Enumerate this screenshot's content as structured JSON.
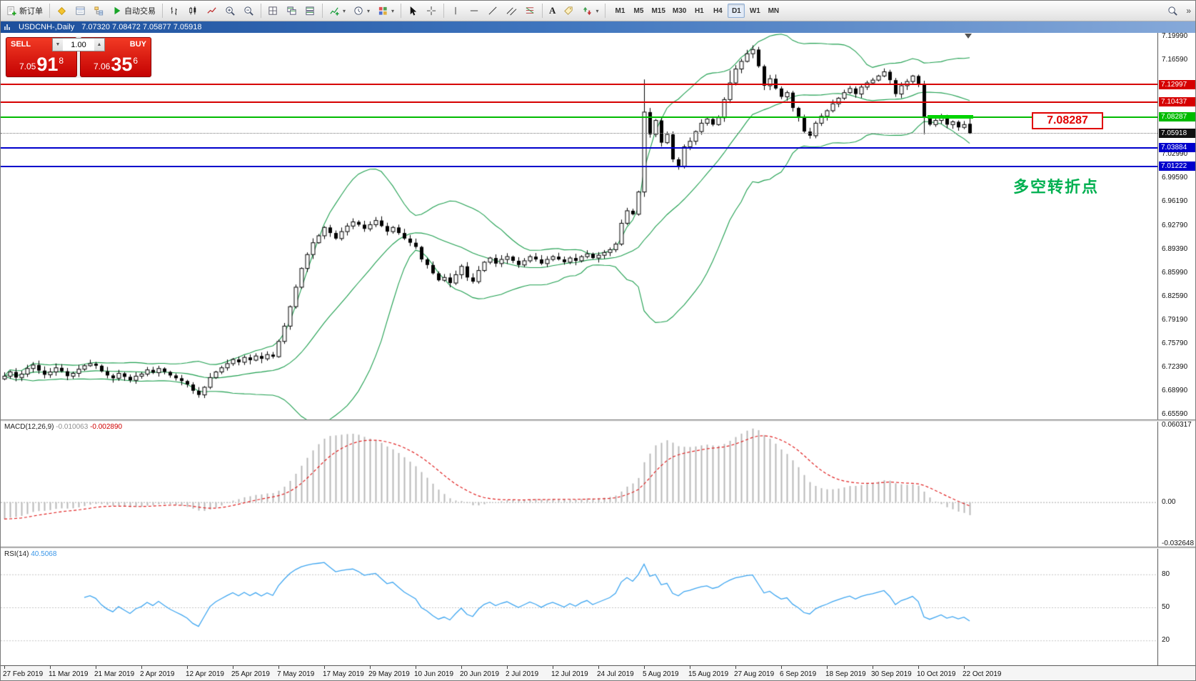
{
  "window": {
    "title_symbol": "USDCNH-,Daily",
    "title_ohlc": "7.07320 7.08472 7.05877 7.05918"
  },
  "toolbar": {
    "new_order_label": "新订单",
    "autotrading_label": "自动交易",
    "text_tool_label": "A",
    "timeframes": [
      "M1",
      "M5",
      "M15",
      "M30",
      "H1",
      "H4",
      "D1",
      "W1",
      "MN"
    ],
    "active_timeframe": "D1"
  },
  "icons": {
    "dropdown_caret": "▾",
    "spinner_up": "▲",
    "spinner_down": "▼",
    "overflow_chevron": "»"
  },
  "trade_panel": {
    "sell_label": "SELL",
    "buy_label": "BUY",
    "volume": "1.00",
    "sell_price": {
      "prefix": "7.05",
      "big": "91",
      "sup": "8"
    },
    "buy_price": {
      "prefix": "7.06",
      "big": "35",
      "sup": "6"
    }
  },
  "annotations": {
    "price_callout": "7.08287",
    "price_callout_color": "#e00000",
    "turning_point_text": "多空转折点",
    "turning_point_color": "#00b050"
  },
  "panels": {
    "macd": {
      "name": "MACD(12,26,9)",
      "value_main": "-0.010063",
      "value_signal": "-0.002890",
      "scale_top": "0.060317",
      "scale_zero": "0.00",
      "scale_bottom": "-0.032648"
    },
    "rsi": {
      "name": "RSI(14)",
      "value": "40.5068",
      "levels": [
        "80",
        "50",
        "20"
      ]
    }
  },
  "price_axis": {
    "regular_labels": [
      "7.19990",
      "7.16590",
      "7.02990",
      "6.99590",
      "6.96190",
      "6.92790",
      "6.89390",
      "6.85990",
      "6.82590",
      "6.79190",
      "6.75790",
      "6.72390",
      "6.68990",
      "6.65590"
    ],
    "badges": [
      {
        "text": "7.12997",
        "bg": "#d60000"
      },
      {
        "text": "7.10437",
        "bg": "#d60000"
      },
      {
        "text": "7.08287",
        "bg": "#00bb00"
      },
      {
        "text": "7.05918",
        "bg": "#111111"
      },
      {
        "text": "7.03884",
        "bg": "#0000cc"
      },
      {
        "text": "7.01222",
        "bg": "#0000cc"
      }
    ]
  },
  "chart_data": {
    "type": "candlestick",
    "symbol": "USDCNH-",
    "timeframe": "Daily",
    "last_bar": {
      "open": 7.0732,
      "high": 7.08472,
      "low": 7.05877,
      "close": 7.05918
    },
    "bid_price": 7.05918,
    "price_range": [
      6.6559,
      7.1999
    ],
    "bars_per_label": 8,
    "x_labels": [
      "27 Feb 2019",
      "11 Mar 2019",
      "21 Mar 2019",
      "2 Apr 2019",
      "12 Apr 2019",
      "25 Apr 2019",
      "7 May 2019",
      "17 May 2019",
      "29 May 2019",
      "10 Jun 2019",
      "20 Jun 2019",
      "2 Jul 2019",
      "12 Jul 2019",
      "24 Jul 2019",
      "5 Aug 2019",
      "15 Aug 2019",
      "27 Aug 2019",
      "6 Sep 2019",
      "18 Sep 2019",
      "30 Sep 2019",
      "10 Oct 2019",
      "22 Oct 2019"
    ],
    "closes": [
      6.71,
      6.716,
      6.708,
      6.713,
      6.721,
      6.726,
      6.718,
      6.712,
      6.716,
      6.722,
      6.717,
      6.71,
      6.714,
      6.72,
      6.725,
      6.728,
      6.725,
      6.717,
      6.711,
      6.707,
      6.714,
      6.709,
      6.704,
      6.71,
      6.713,
      6.719,
      6.715,
      6.721,
      6.716,
      6.711,
      6.707,
      6.703,
      6.698,
      6.689,
      6.683,
      6.694,
      6.708,
      6.716,
      6.722,
      6.728,
      6.734,
      6.73,
      6.737,
      6.733,
      6.739,
      6.735,
      6.741,
      6.738,
      6.76,
      6.782,
      6.81,
      6.838,
      6.865,
      6.885,
      6.902,
      6.912,
      6.924,
      6.916,
      6.908,
      6.918,
      6.926,
      6.932,
      6.928,
      6.922,
      6.928,
      6.934,
      6.926,
      6.918,
      6.924,
      6.916,
      6.908,
      6.902,
      6.896,
      6.878,
      6.87,
      6.858,
      6.848,
      6.852,
      6.844,
      6.856,
      6.868,
      6.852,
      6.846,
      6.862,
      6.874,
      6.88,
      6.872,
      6.878,
      6.882,
      6.876,
      6.87,
      6.876,
      6.882,
      6.878,
      6.872,
      6.878,
      6.882,
      6.878,
      6.874,
      6.88,
      6.876,
      6.882,
      6.886,
      6.88,
      6.884,
      6.888,
      6.892,
      6.9,
      6.93,
      6.948,
      6.943,
      6.975,
      7.09,
      7.058,
      7.078,
      7.046,
      7.058,
      7.022,
      7.012,
      7.04,
      7.048,
      7.062,
      7.074,
      7.08,
      7.072,
      7.082,
      7.108,
      7.132,
      7.152,
      7.163,
      7.174,
      7.18,
      7.156,
      7.128,
      7.138,
      7.124,
      7.112,
      7.118,
      7.096,
      7.082,
      7.062,
      7.056,
      7.074,
      7.084,
      7.092,
      7.102,
      7.11,
      7.118,
      7.124,
      7.116,
      7.126,
      7.132,
      7.136,
      7.142,
      7.148,
      7.136,
      7.116,
      7.128,
      7.134,
      7.142,
      7.13,
      7.082,
      7.072,
      7.078,
      7.084,
      7.072,
      7.076,
      7.068,
      7.072,
      7.059
    ],
    "overrides": {
      "112": {
        "h": 7.137,
        "l": 6.968
      },
      "127": {
        "h": 7.15
      },
      "131": {
        "h": 7.186
      },
      "161": {
        "l": 7.058
      },
      "169": {
        "o": 7.0732,
        "h": 7.08472,
        "l": 7.05877,
        "c": 7.05918
      }
    },
    "hlines": [
      {
        "price": 7.12997,
        "color": "#d60000"
      },
      {
        "price": 7.10437,
        "color": "#d60000"
      },
      {
        "price": 7.08287,
        "color": "#00bb00"
      },
      {
        "price": 7.03884,
        "color": "#0000cc"
      },
      {
        "price": 7.01222,
        "color": "#0000cc"
      }
    ],
    "indicators": {
      "bollinger": {
        "period": 20,
        "deviation": 2,
        "color": "#1d9e4e"
      },
      "macd": {
        "fast": 12,
        "slow": 26,
        "signal": 9,
        "main": -0.010063,
        "signal_value": -0.00289,
        "scale": [
          -0.032648,
          0.060317
        ],
        "histogram_color": "#b9b9b9",
        "signal_color": "#e02020"
      },
      "rsi": {
        "period": 14,
        "value": 40.5068,
        "levels": [
          80,
          50,
          20
        ],
        "color": "#3da5f0"
      }
    }
  }
}
